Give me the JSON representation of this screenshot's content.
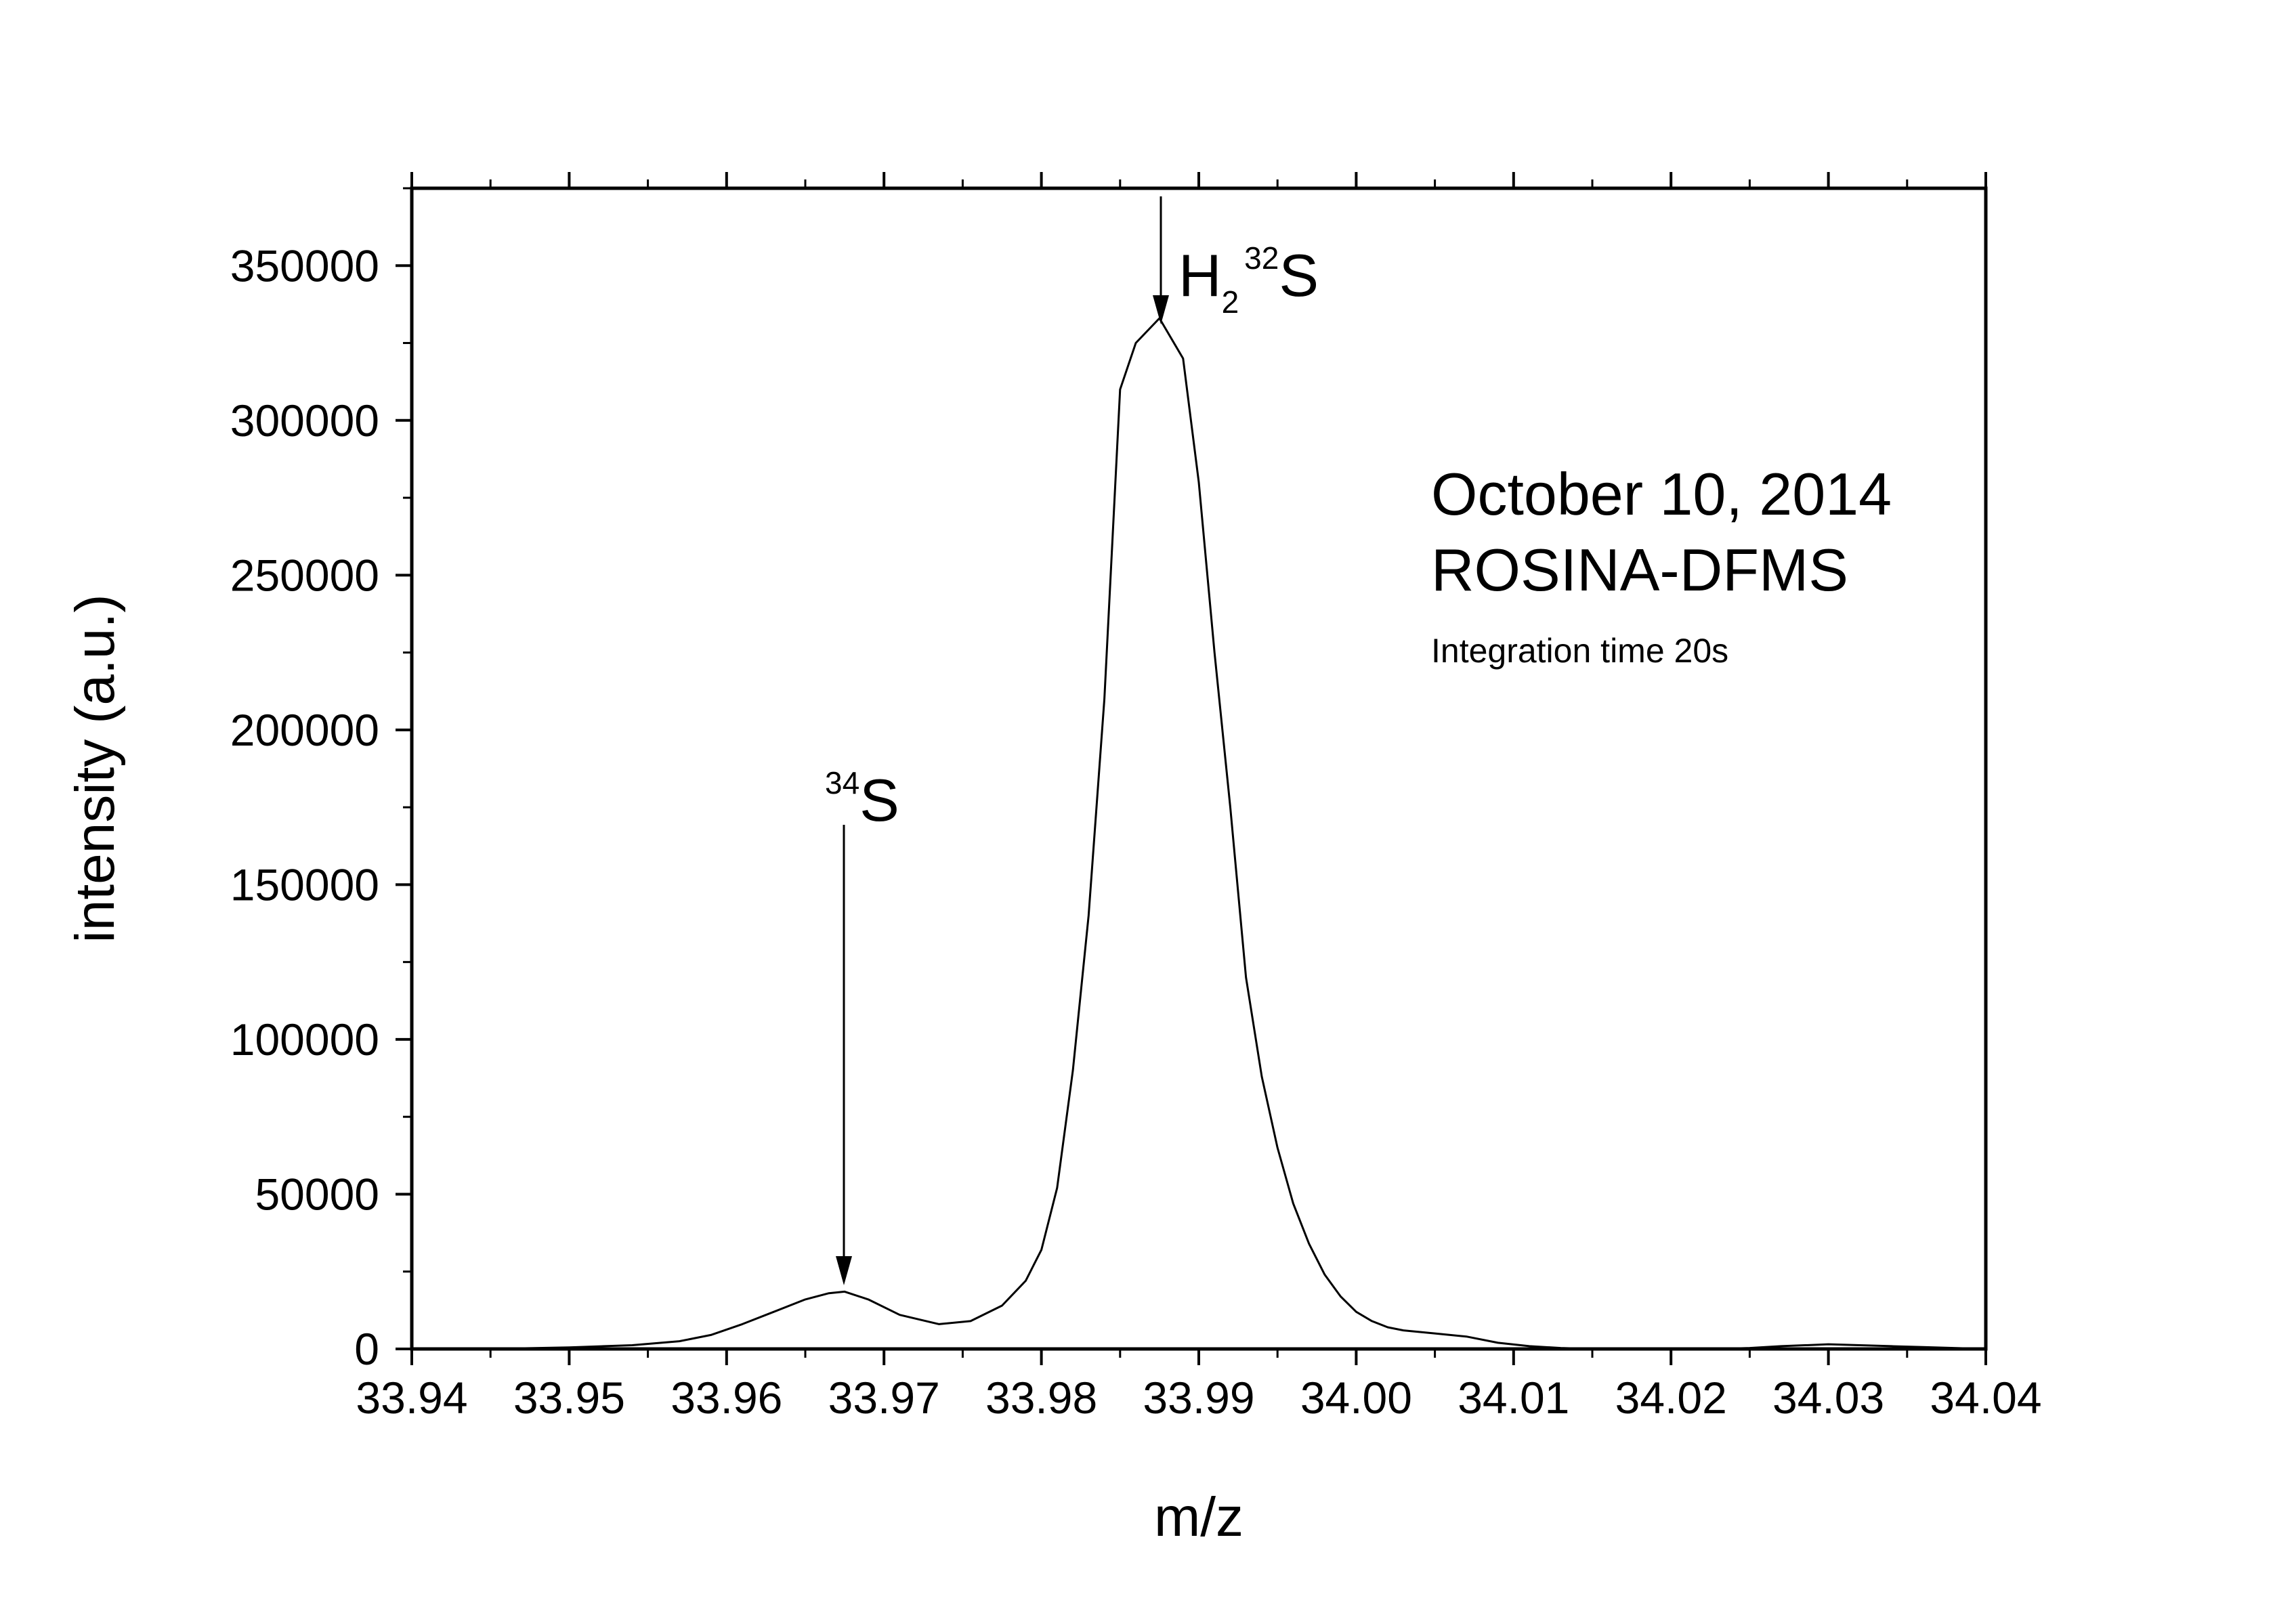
{
  "chart_data": {
    "type": "line",
    "xlabel": "m/z",
    "ylabel": "intensity (a.u.)",
    "xlim": [
      33.94,
      34.04
    ],
    "ylim": [
      0,
      375000
    ],
    "xticks": [
      "33.94",
      "33.95",
      "33.96",
      "33.97",
      "33.98",
      "33.99",
      "34.00",
      "34.01",
      "34.02",
      "34.03",
      "34.04"
    ],
    "yticks": [
      "0",
      "50000",
      "100000",
      "150000",
      "200000",
      "250000",
      "300000",
      "350000"
    ],
    "grid": false,
    "legend": "none",
    "series": [
      {
        "color": "#000000",
        "x": [
          33.94,
          33.945,
          33.95,
          33.954,
          33.957,
          33.959,
          33.961,
          33.963,
          33.965,
          33.9665,
          33.9675,
          33.969,
          33.971,
          33.9735,
          33.9755,
          33.9775,
          33.979,
          33.98,
          33.981,
          33.982,
          33.983,
          33.984,
          33.985,
          33.986,
          33.9875,
          33.989,
          33.99,
          33.991,
          33.992,
          33.993,
          33.994,
          33.995,
          33.996,
          33.997,
          33.998,
          33.999,
          34.0,
          34.001,
          34.002,
          34.003,
          34.005,
          34.007,
          34.009,
          34.011,
          34.013,
          34.015,
          34.017,
          34.02,
          34.023,
          34.025,
          34.027,
          34.029,
          34.03,
          34.032,
          34.034,
          34.036,
          34.038,
          34.04
        ],
        "y": [
          0,
          0,
          500,
          1200,
          2500,
          4500,
          8000,
          12000,
          16000,
          18000,
          18500,
          16000,
          11000,
          8000,
          9000,
          14000,
          22000,
          32000,
          52000,
          90000,
          140000,
          210000,
          310000,
          325000,
          333000,
          320000,
          280000,
          225000,
          175000,
          120000,
          88000,
          65000,
          47000,
          34000,
          24000,
          17000,
          12000,
          9000,
          7000,
          6000,
          5000,
          4000,
          2000,
          900,
          300,
          0,
          0,
          0,
          0,
          300,
          900,
          1300,
          1500,
          1200,
          900,
          600,
          300,
          0
        ]
      }
    ],
    "annotations": {
      "date": "October 10, 2014",
      "instrument": "ROSINA-DFMS",
      "integration": "Integration time 20s",
      "peak_34S": {
        "x": 33.9675,
        "y": 18500,
        "label_sup": "34",
        "label_main": "S"
      },
      "peak_H2S": {
        "x": 33.9875,
        "y": 333000,
        "label_h": "H",
        "label_sub": "2",
        "label_sup": "32",
        "label_main": "S"
      }
    }
  }
}
